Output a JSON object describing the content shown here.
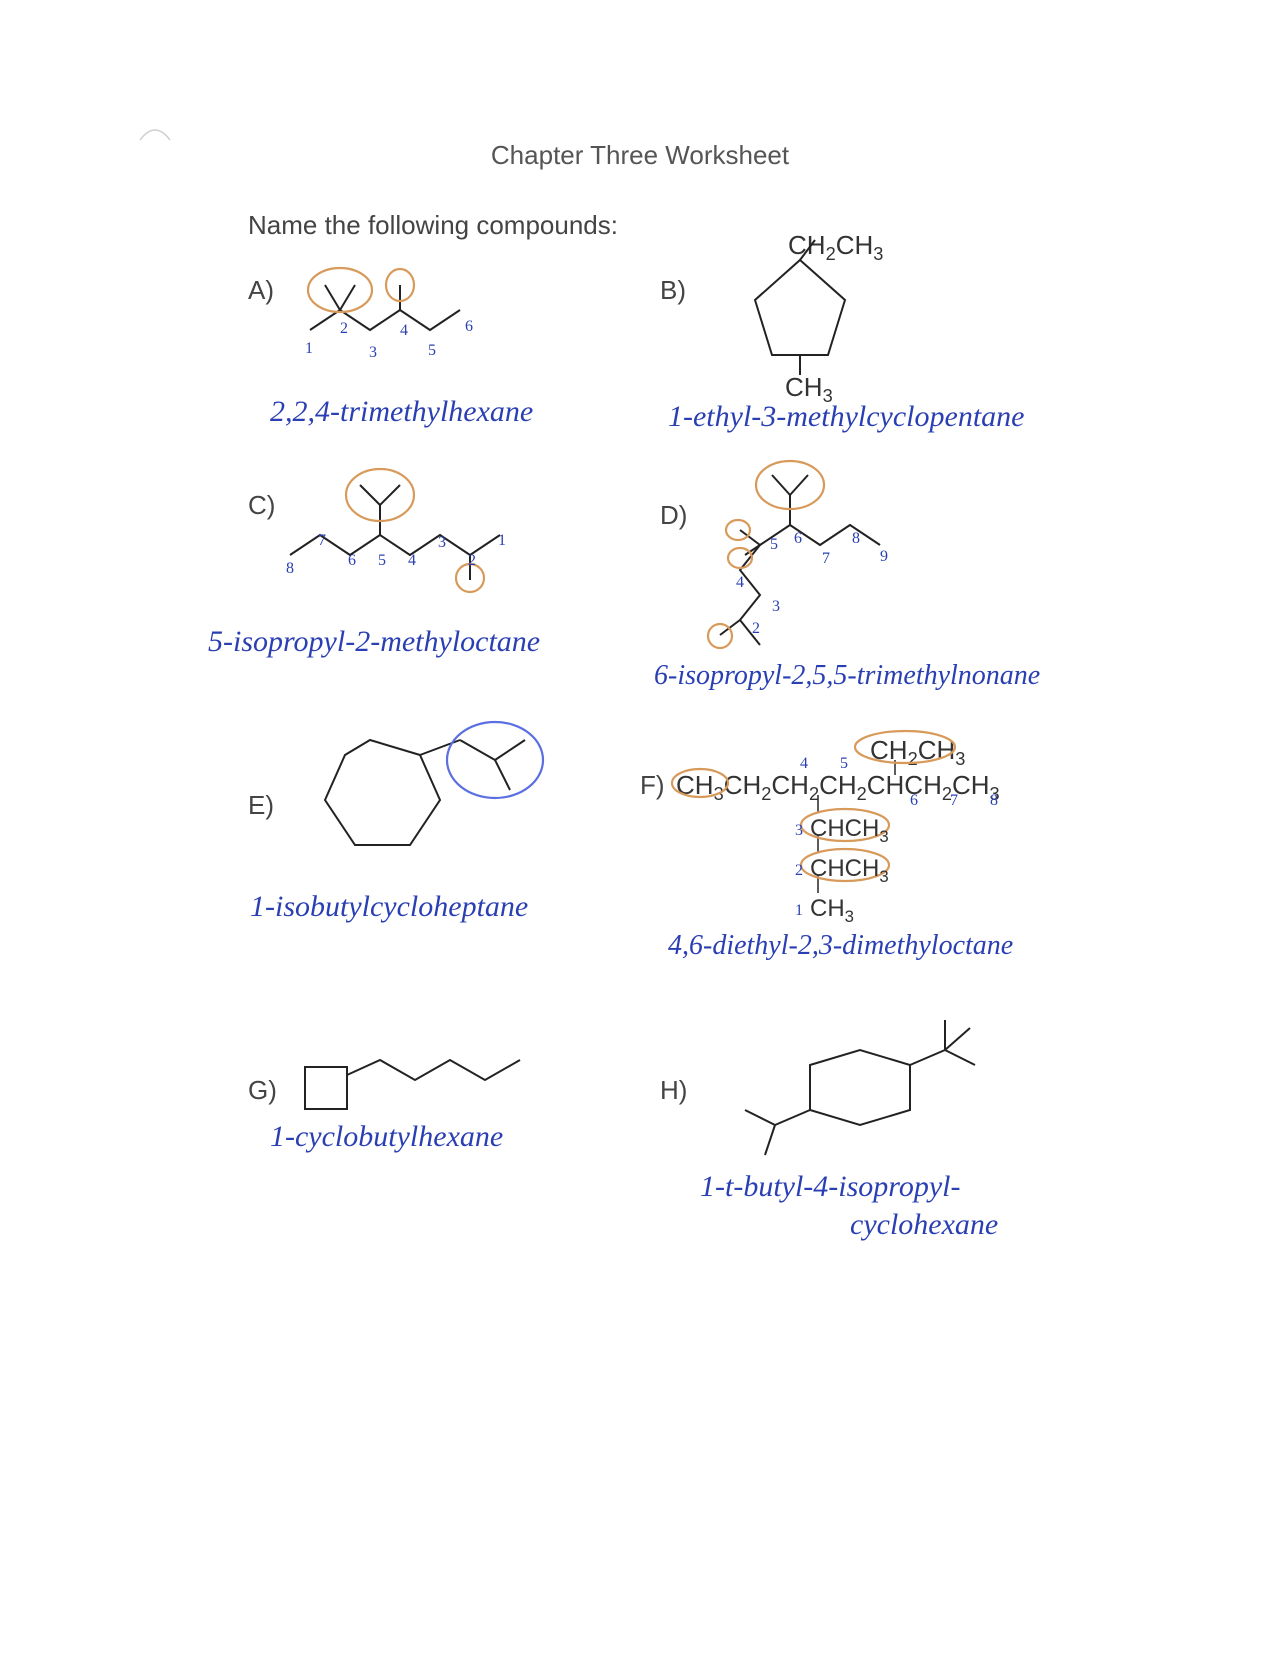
{
  "title": "Chapter Three Worksheet",
  "prompt": "Name the following compounds:",
  "labels": {
    "A": "A)",
    "B": "B)",
    "C": "C)",
    "D": "D)",
    "E": "E)",
    "F": "F)",
    "G": "G)",
    "H": "H)"
  },
  "formulas": {
    "B_top": "CH<sub>2</sub>CH<sub>3</sub>",
    "B_bottom": "CH<sub>3</sub>",
    "F_main": "CH<sub>3</sub>CH<sub>2</sub>CH<sub>2</sub>CH<sub>2</sub>CHCH<sub>2</sub>CH<sub>3</sub>",
    "F_top": "CH<sub>2</sub>CH<sub>3</sub>",
    "F_l2": "CHCH<sub>3</sub>",
    "F_l3": "CHCH<sub>3</sub>",
    "F_l4": "CH<sub>3</sub>"
  },
  "answers": {
    "A": "2,2,4-trimethylhexane",
    "B": "1-ethyl-3-methylcyclopentane",
    "C": "5-isopropyl-2-methyloctane",
    "D": "6-isopropyl-2,5,5-trimethylnonane",
    "E": "1-isobutylcycloheptane",
    "F": "4,6-diethyl-2,3-dimethyloctane",
    "G": "1-cyclobutylhexane",
    "H1": "1-t-butyl-4-isopropyl-",
    "H2": "cyclohexane"
  },
  "nums": {
    "A": [
      "1",
      "2",
      "3",
      "4",
      "5",
      "6"
    ],
    "C": [
      "1",
      "2",
      "3",
      "4",
      "5",
      "6",
      "7",
      "8"
    ],
    "D": [
      "2",
      "3",
      "4",
      "5",
      "6",
      "7",
      "8",
      "9"
    ],
    "F_top": [
      "4",
      "5"
    ],
    "F_mid": [
      "6",
      "7",
      "8"
    ],
    "F_side": [
      "3",
      "2",
      "1"
    ]
  },
  "colors": {
    "ink": "#2a3fb3",
    "printed": "#444444",
    "struct": "#222222",
    "circle_orange": "#d89a5a",
    "circle_blue": "#5a6fe0",
    "bg": "#ffffff"
  }
}
